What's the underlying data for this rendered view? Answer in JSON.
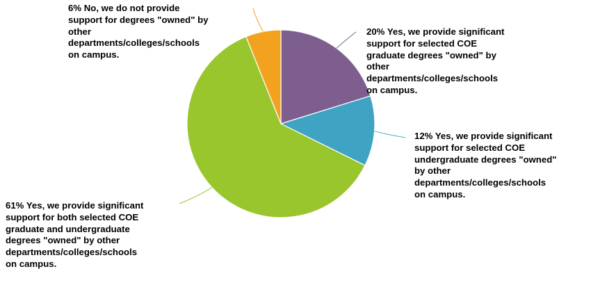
{
  "chart_data": {
    "type": "pie",
    "start_angle_deg": 0,
    "direction": "clockwise",
    "slices": [
      {
        "percent": "20%",
        "value": 20,
        "label": "Yes, we provide significant\nsupport for selected COE\ngraduate degrees \"owned\" by\nother\ndepartments/colleges/schools\non campus.",
        "color": "#7d5e8f"
      },
      {
        "percent": "12%",
        "value": 12,
        "label": "Yes, we provide significant\nsupport for selected COE\nundergraduate degrees \"owned\"\nby other\ndepartments/colleges/schools\non campus.",
        "color": "#3fa3c3"
      },
      {
        "percent": "61%",
        "value": 61,
        "label": "Yes, we provide significant\nsupport for both selected COE\ngraduate and undergraduate\ndegrees \"owned\" by other\ndepartments/colleges/schools\non campus.",
        "color": "#98c62c"
      },
      {
        "percent": "6%",
        "value": 6,
        "label": "No, we do not provide\nsupport for degrees \"owned\" by\nother\ndepartments/colleges/schools\non campus.",
        "color": "#f3a21f"
      }
    ]
  }
}
